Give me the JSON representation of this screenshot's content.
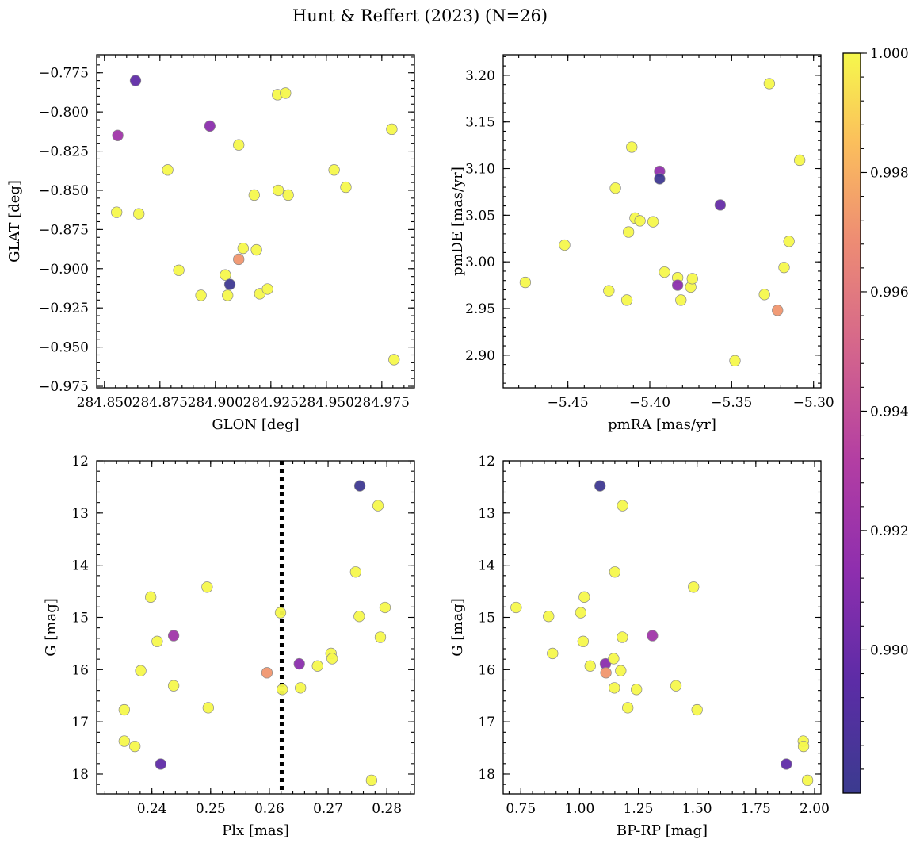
{
  "figure": {
    "title": "Hunt & Reffert (2023) (N=26)"
  },
  "colorbar": {
    "colormap": "plasma",
    "min": 0.9876,
    "max": 1.0,
    "ticks": [
      0.99,
      0.992,
      0.994,
      0.996,
      0.998,
      1.0
    ],
    "tick_labels": [
      "0.990",
      "0.992",
      "0.994",
      "0.996",
      "0.998",
      "1.000"
    ]
  },
  "chart_data": [
    {
      "id": "glon-glat",
      "type": "scatter",
      "xlabel": "GLON [deg]",
      "ylabel": "GLAT [deg]",
      "xlim": [
        284.8465,
        284.9897
      ],
      "ylim": [
        -0.976,
        -0.7635
      ],
      "y_inverted": false,
      "xticks": [
        284.85,
        284.875,
        284.9,
        284.925,
        284.95,
        284.975
      ],
      "xtick_labels": [
        "284.850",
        "284.875",
        "284.900",
        "284.925",
        "284.950",
        "284.975"
      ],
      "yticks": [
        -0.775,
        -0.8,
        -0.825,
        -0.85,
        -0.875,
        -0.9,
        -0.925,
        -0.95,
        -0.975
      ],
      "ytick_labels": [
        "−0.775",
        "−0.800",
        "−0.825",
        "−0.850",
        "−0.875",
        "−0.900",
        "−0.925",
        "−0.950",
        "−0.975"
      ],
      "points": [
        {
          "x": 284.864,
          "y": -0.78,
          "c": 0.9896
        },
        {
          "x": 284.856,
          "y": -0.815,
          "c": 0.9922
        },
        {
          "x": 284.8555,
          "y": -0.864,
          "c": 1.0
        },
        {
          "x": 284.8655,
          "y": -0.865,
          "c": 1.0
        },
        {
          "x": 284.8785,
          "y": -0.837,
          "c": 1.0
        },
        {
          "x": 284.8835,
          "y": -0.901,
          "c": 1.0
        },
        {
          "x": 284.8975,
          "y": -0.809,
          "c": 0.9912
        },
        {
          "x": 284.8935,
          "y": -0.917,
          "c": 1.0
        },
        {
          "x": 284.9045,
          "y": -0.904,
          "c": 1.0
        },
        {
          "x": 284.9055,
          "y": -0.917,
          "c": 1.0
        },
        {
          "x": 284.9065,
          "y": -0.91,
          "c": 0.9878
        },
        {
          "x": 284.9105,
          "y": -0.821,
          "c": 1.0
        },
        {
          "x": 284.9105,
          "y": -0.894,
          "c": 0.9972
        },
        {
          "x": 284.9125,
          "y": -0.887,
          "c": 1.0
        },
        {
          "x": 284.9175,
          "y": -0.853,
          "c": 1.0
        },
        {
          "x": 284.9185,
          "y": -0.888,
          "c": 1.0
        },
        {
          "x": 284.92,
          "y": -0.916,
          "c": 1.0
        },
        {
          "x": 284.9235,
          "y": -0.913,
          "c": 1.0
        },
        {
          "x": 284.928,
          "y": -0.789,
          "c": 1.0
        },
        {
          "x": 284.9283,
          "y": -0.85,
          "c": 1.0
        },
        {
          "x": 284.9316,
          "y": -0.788,
          "c": 1.0
        },
        {
          "x": 284.9328,
          "y": -0.853,
          "c": 1.0
        },
        {
          "x": 284.9535,
          "y": -0.837,
          "c": 1.0
        },
        {
          "x": 284.9588,
          "y": -0.848,
          "c": 1.0
        },
        {
          "x": 284.9795,
          "y": -0.811,
          "c": 1.0
        },
        {
          "x": 284.9805,
          "y": -0.958,
          "c": 1.0
        }
      ]
    },
    {
      "id": "pmra-pmde",
      "type": "scatter",
      "xlabel": "pmRA [mas/yr]",
      "ylabel": "pmDE [mas/yr]",
      "xlim": [
        -5.4895,
        -5.2955
      ],
      "ylim": [
        2.865,
        3.222
      ],
      "y_inverted": false,
      "xticks": [
        -5.45,
        -5.4,
        -5.35,
        -5.3
      ],
      "xtick_labels": [
        "−5.45",
        "−5.40",
        "−5.35",
        "−5.30"
      ],
      "yticks": [
        2.9,
        2.95,
        3.0,
        3.05,
        3.1,
        3.15,
        3.2
      ],
      "ytick_labels": [
        "2.90",
        "2.95",
        "3.00",
        "3.05",
        "3.10",
        "3.15",
        "3.20"
      ],
      "points": [
        {
          "x": -5.476,
          "y": 2.978,
          "c": 1.0
        },
        {
          "x": -5.452,
          "y": 3.018,
          "c": 1.0
        },
        {
          "x": -5.425,
          "y": 2.969,
          "c": 1.0
        },
        {
          "x": -5.421,
          "y": 3.079,
          "c": 1.0
        },
        {
          "x": -5.414,
          "y": 2.959,
          "c": 1.0
        },
        {
          "x": -5.413,
          "y": 3.032,
          "c": 1.0
        },
        {
          "x": -5.411,
          "y": 3.123,
          "c": 1.0
        },
        {
          "x": -5.409,
          "y": 3.047,
          "c": 1.0
        },
        {
          "x": -5.406,
          "y": 3.044,
          "c": 1.0
        },
        {
          "x": -5.398,
          "y": 3.043,
          "c": 1.0
        },
        {
          "x": -5.394,
          "y": 3.097,
          "c": 0.9915
        },
        {
          "x": -5.394,
          "y": 3.089,
          "c": 0.9878
        },
        {
          "x": -5.391,
          "y": 2.989,
          "c": 1.0
        },
        {
          "x": -5.383,
          "y": 2.983,
          "c": 1.0
        },
        {
          "x": -5.383,
          "y": 2.975,
          "c": 0.9912
        },
        {
          "x": -5.381,
          "y": 2.959,
          "c": 1.0
        },
        {
          "x": -5.375,
          "y": 2.973,
          "c": 1.0
        },
        {
          "x": -5.374,
          "y": 2.982,
          "c": 1.0
        },
        {
          "x": -5.357,
          "y": 3.061,
          "c": 0.9898
        },
        {
          "x": -5.348,
          "y": 2.894,
          "c": 1.0
        },
        {
          "x": -5.33,
          "y": 2.965,
          "c": 1.0
        },
        {
          "x": -5.327,
          "y": 3.191,
          "c": 1.0
        },
        {
          "x": -5.322,
          "y": 2.948,
          "c": 0.9972
        },
        {
          "x": -5.318,
          "y": 2.994,
          "c": 1.0
        },
        {
          "x": -5.315,
          "y": 3.022,
          "c": 1.0
        },
        {
          "x": -5.3085,
          "y": 3.109,
          "c": 1.0
        }
      ]
    },
    {
      "id": "plx-g",
      "type": "scatter",
      "xlabel": "Plx [mas]",
      "ylabel": "G [mag]",
      "xlim": [
        0.2306,
        0.2847
      ],
      "ylim": [
        12.0,
        18.38
      ],
      "y_inverted": true,
      "vline": {
        "x": 0.2621,
        "style": "dotted"
      },
      "xticks": [
        0.24,
        0.25,
        0.26,
        0.27,
        0.28
      ],
      "xtick_labels": [
        "0.24",
        "0.25",
        "0.26",
        "0.27",
        "0.28"
      ],
      "yticks": [
        12,
        13,
        14,
        15,
        16,
        17,
        18
      ],
      "ytick_labels": [
        "12",
        "13",
        "14",
        "15",
        "16",
        "17",
        "18"
      ],
      "points": [
        {
          "x": 0.2353,
          "y": 16.77,
          "c": 1.0
        },
        {
          "x": 0.2353,
          "y": 17.37,
          "c": 1.0
        },
        {
          "x": 0.2371,
          "y": 17.47,
          "c": 1.0
        },
        {
          "x": 0.2381,
          "y": 16.02,
          "c": 1.0
        },
        {
          "x": 0.2398,
          "y": 14.61,
          "c": 1.0
        },
        {
          "x": 0.2409,
          "y": 15.46,
          "c": 1.0
        },
        {
          "x": 0.2415,
          "y": 17.81,
          "c": 0.9896
        },
        {
          "x": 0.2437,
          "y": 15.35,
          "c": 0.9922
        },
        {
          "x": 0.2437,
          "y": 16.31,
          "c": 1.0
        },
        {
          "x": 0.2494,
          "y": 14.42,
          "c": 1.0
        },
        {
          "x": 0.2496,
          "y": 16.73,
          "c": 1.0
        },
        {
          "x": 0.2596,
          "y": 16.06,
          "c": 0.9972
        },
        {
          "x": 0.2619,
          "y": 14.91,
          "c": 1.0
        },
        {
          "x": 0.2622,
          "y": 16.38,
          "c": 1.0
        },
        {
          "x": 0.2651,
          "y": 15.89,
          "c": 0.9912
        },
        {
          "x": 0.2653,
          "y": 16.35,
          "c": 1.0
        },
        {
          "x": 0.2682,
          "y": 15.93,
          "c": 1.0
        },
        {
          "x": 0.2705,
          "y": 15.69,
          "c": 1.0
        },
        {
          "x": 0.2707,
          "y": 15.79,
          "c": 1.0
        },
        {
          "x": 0.2747,
          "y": 14.13,
          "c": 1.0
        },
        {
          "x": 0.2753,
          "y": 14.98,
          "c": 1.0
        },
        {
          "x": 0.2754,
          "y": 12.48,
          "c": 0.9878
        },
        {
          "x": 0.2774,
          "y": 18.12,
          "c": 1.0
        },
        {
          "x": 0.2785,
          "y": 12.86,
          "c": 1.0
        },
        {
          "x": 0.2789,
          "y": 15.38,
          "c": 1.0
        },
        {
          "x": 0.2797,
          "y": 14.81,
          "c": 1.0
        }
      ]
    },
    {
      "id": "bprp-g",
      "type": "scatter",
      "xlabel": "BP-RP [mag]",
      "ylabel": "G [mag]",
      "xlim": [
        0.675,
        2.027
      ],
      "ylim": [
        12.0,
        18.38
      ],
      "y_inverted": true,
      "xticks": [
        0.75,
        1.0,
        1.25,
        1.5,
        1.75,
        2.0
      ],
      "xtick_labels": [
        "0.75",
        "1.00",
        "1.25",
        "1.50",
        "1.75",
        "2.00"
      ],
      "yticks": [
        12,
        13,
        14,
        15,
        16,
        17,
        18
      ],
      "ytick_labels": [
        "12",
        "13",
        "14",
        "15",
        "16",
        "17",
        "18"
      ],
      "points": [
        {
          "x": 0.73,
          "y": 14.81,
          "c": 1.0
        },
        {
          "x": 0.868,
          "y": 14.98,
          "c": 1.0
        },
        {
          "x": 0.885,
          "y": 15.69,
          "c": 1.0
        },
        {
          "x": 1.005,
          "y": 14.91,
          "c": 1.0
        },
        {
          "x": 1.015,
          "y": 15.46,
          "c": 1.0
        },
        {
          "x": 1.02,
          "y": 14.61,
          "c": 1.0
        },
        {
          "x": 1.045,
          "y": 15.93,
          "c": 1.0
        },
        {
          "x": 1.087,
          "y": 12.48,
          "c": 0.9878
        },
        {
          "x": 1.11,
          "y": 15.89,
          "c": 0.9912
        },
        {
          "x": 1.112,
          "y": 16.06,
          "c": 0.9972
        },
        {
          "x": 1.145,
          "y": 15.79,
          "c": 1.0
        },
        {
          "x": 1.148,
          "y": 16.35,
          "c": 1.0
        },
        {
          "x": 1.15,
          "y": 14.13,
          "c": 1.0
        },
        {
          "x": 1.175,
          "y": 16.02,
          "c": 1.0
        },
        {
          "x": 1.182,
          "y": 15.38,
          "c": 1.0
        },
        {
          "x": 1.183,
          "y": 12.86,
          "c": 1.0
        },
        {
          "x": 1.205,
          "y": 16.73,
          "c": 1.0
        },
        {
          "x": 1.242,
          "y": 16.38,
          "c": 1.0
        },
        {
          "x": 1.31,
          "y": 15.35,
          "c": 0.9922
        },
        {
          "x": 1.41,
          "y": 16.31,
          "c": 1.0
        },
        {
          "x": 1.485,
          "y": 14.42,
          "c": 1.0
        },
        {
          "x": 1.5,
          "y": 16.77,
          "c": 1.0
        },
        {
          "x": 1.88,
          "y": 17.81,
          "c": 0.9896
        },
        {
          "x": 1.952,
          "y": 17.37,
          "c": 1.0
        },
        {
          "x": 1.953,
          "y": 17.47,
          "c": 1.0
        },
        {
          "x": 1.97,
          "y": 18.12,
          "c": 1.0
        }
      ]
    }
  ]
}
